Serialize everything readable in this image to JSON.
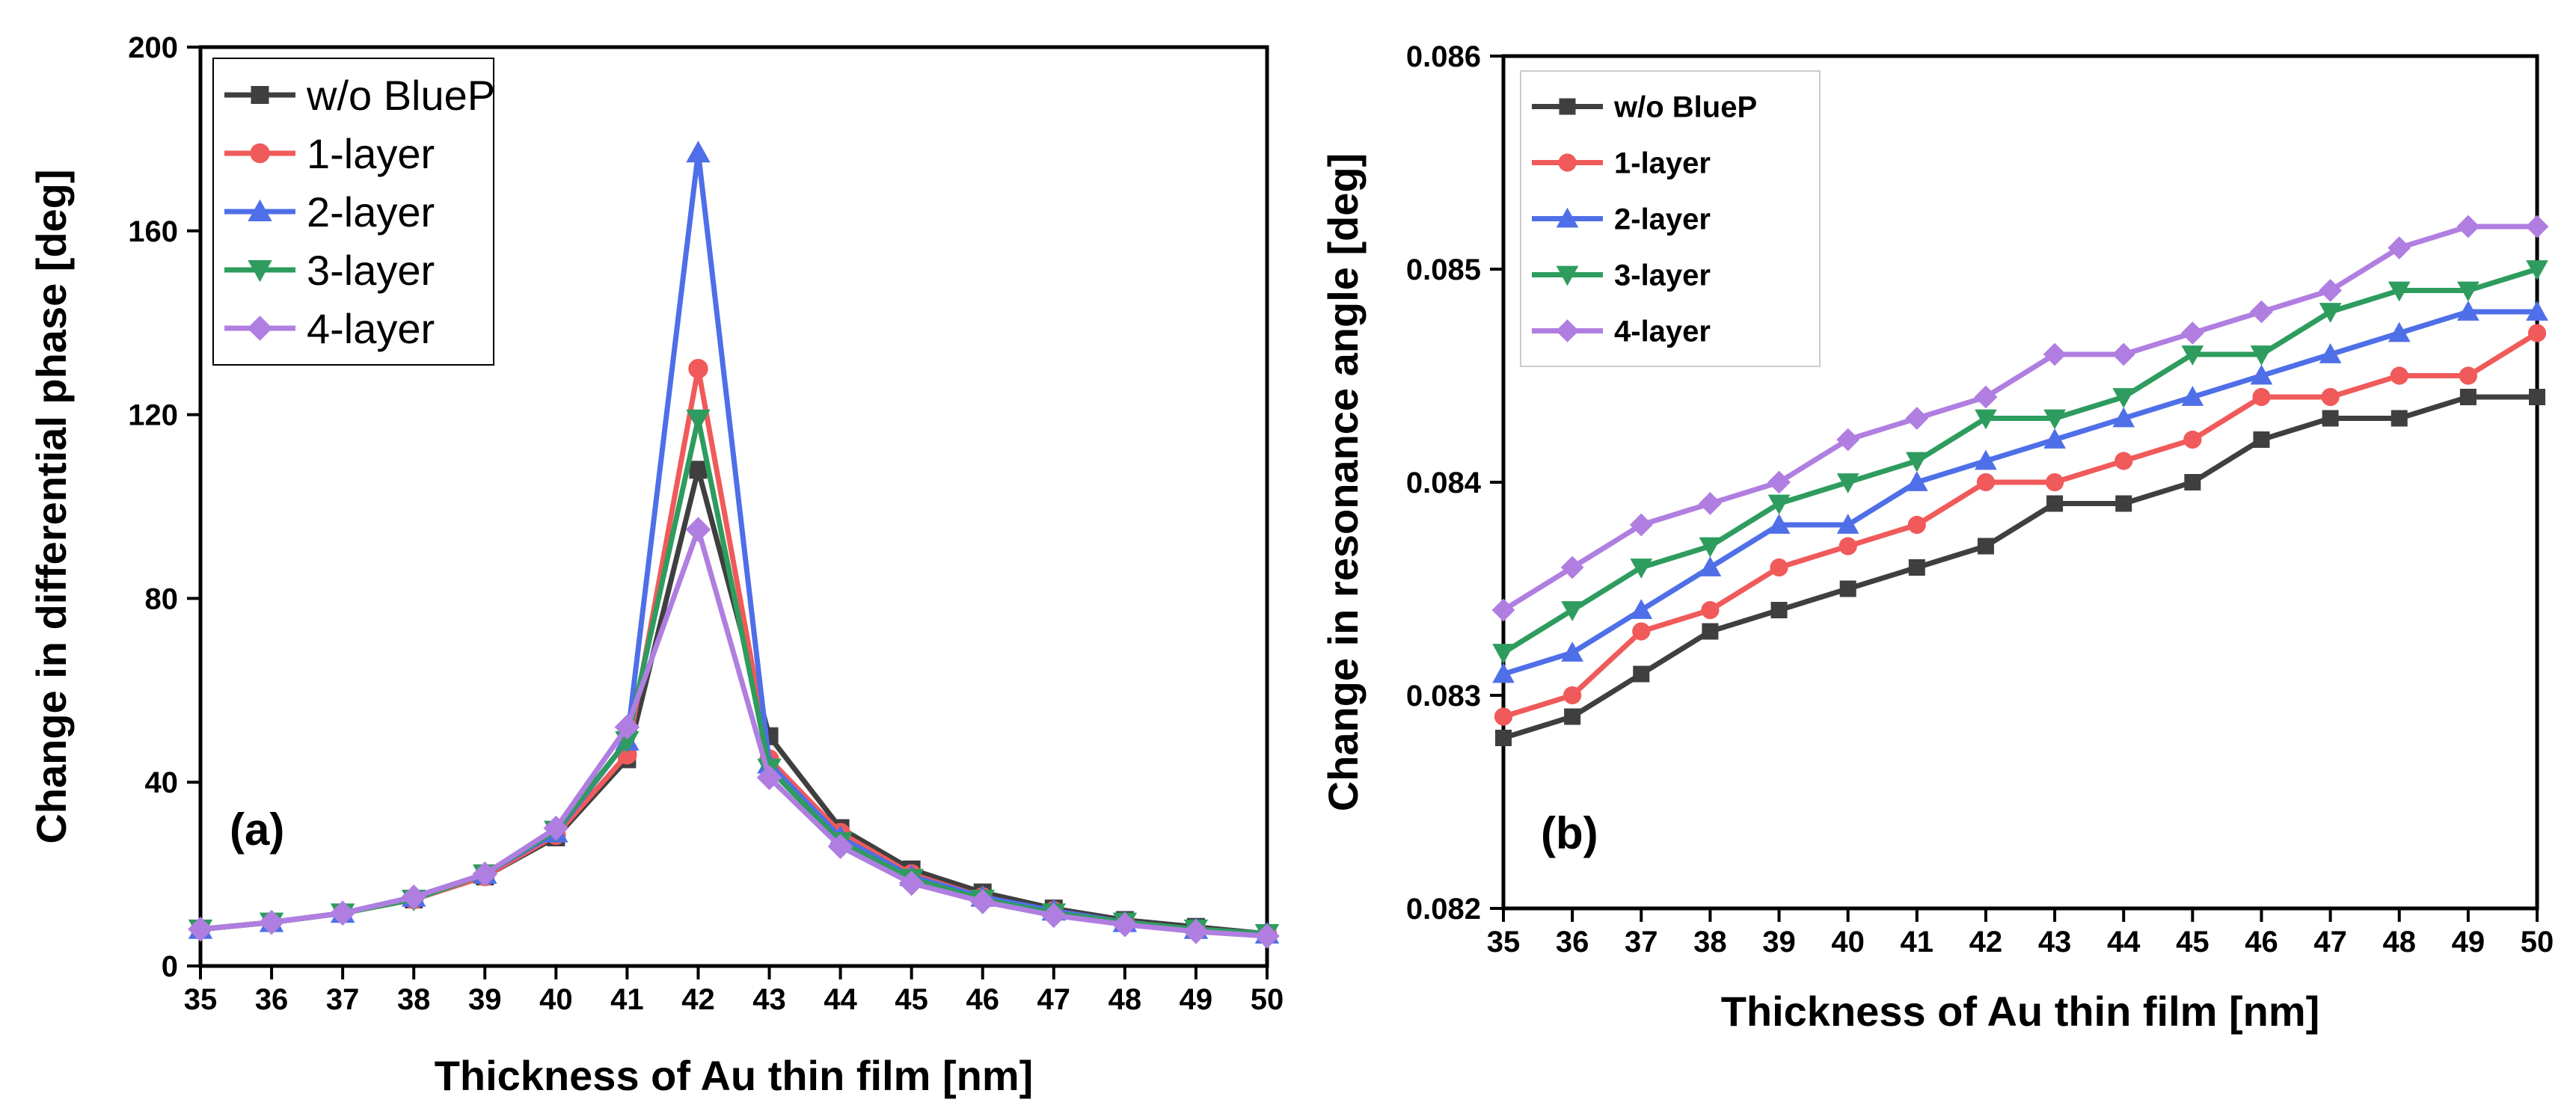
{
  "chart_data": [
    {
      "type": "line",
      "panel_label": "(a)",
      "xlabel": "Thickness of Au thin film [nm]",
      "ylabel": "Change in differential phase [deg]",
      "x": [
        35,
        36,
        37,
        38,
        39,
        40,
        41,
        42,
        43,
        44,
        45,
        46,
        47,
        48,
        49,
        50
      ],
      "xlim": [
        35,
        50
      ],
      "ylim": [
        0,
        200
      ],
      "xticks": [
        "35",
        "36",
        "37",
        "38",
        "39",
        "40",
        "41",
        "42",
        "43",
        "44",
        "45",
        "46",
        "47",
        "48",
        "49",
        "50"
      ],
      "yticks": [
        "0",
        "40",
        "80",
        "120",
        "160",
        "200"
      ],
      "legend_position": "top-left",
      "series": [
        {
          "name": "w/o BlueP",
          "color": "#3f3f3f",
          "marker": "square",
          "values": [
            8,
            9.5,
            11.5,
            14.5,
            19.5,
            28,
            45,
            108,
            50,
            30,
            21,
            16,
            12.5,
            10,
            8.5,
            7
          ]
        },
        {
          "name": "1-layer",
          "color": "#f05a5a",
          "marker": "circle",
          "values": [
            8,
            9.5,
            11.5,
            14.5,
            19.5,
            28.5,
            46,
            130,
            45,
            29,
            20,
            15,
            12,
            9.5,
            8,
            7
          ]
        },
        {
          "name": "2-layer",
          "color": "#4f6fe8",
          "marker": "triangle-up",
          "values": [
            8,
            9.5,
            11.5,
            15,
            20,
            29,
            49,
            177,
            44,
            28,
            19.5,
            15,
            12,
            9.5,
            8,
            7
          ]
        },
        {
          "name": "3-layer",
          "color": "#2e9c5e",
          "marker": "triangle-down",
          "values": [
            8,
            9.5,
            11.5,
            14.5,
            20,
            29.5,
            49,
            119,
            43,
            27,
            19,
            14.5,
            11.5,
            9.5,
            8,
            7
          ]
        },
        {
          "name": "4-layer",
          "color": "#b07ee0",
          "marker": "diamond",
          "values": [
            8,
            9.5,
            11.5,
            15,
            20,
            30,
            52,
            95,
            41,
            26,
            18,
            14,
            11,
            9,
            7.5,
            6.5
          ]
        }
      ]
    },
    {
      "type": "line",
      "panel_label": "(b)",
      "xlabel": "Thickness of Au thin film [nm]",
      "ylabel": "Change in resonance angle [deg]",
      "x": [
        35,
        36,
        37,
        38,
        39,
        40,
        41,
        42,
        43,
        44,
        45,
        46,
        47,
        48,
        49,
        50
      ],
      "xlim": [
        35,
        50
      ],
      "ylim": [
        0.082,
        0.086
      ],
      "xticks": [
        "35",
        "36",
        "37",
        "38",
        "39",
        "40",
        "41",
        "42",
        "43",
        "44",
        "45",
        "46",
        "47",
        "48",
        "49",
        "50"
      ],
      "yticks": [
        "0.082",
        "0.083",
        "0.084",
        "0.085",
        "0.086"
      ],
      "legend_position": "top-left",
      "series": [
        {
          "name": "w/o BlueP",
          "color": "#3f3f3f",
          "marker": "square",
          "values": [
            0.0828,
            0.0829,
            0.0831,
            0.0833,
            0.0834,
            0.0835,
            0.0836,
            0.0837,
            0.0839,
            0.0839,
            0.084,
            0.0842,
            0.0843,
            0.0843,
            0.0844,
            0.0844
          ]
        },
        {
          "name": "1-layer",
          "color": "#f05a5a",
          "marker": "circle",
          "values": [
            0.0829,
            0.083,
            0.0833,
            0.0834,
            0.0836,
            0.0837,
            0.0838,
            0.084,
            0.084,
            0.0841,
            0.0842,
            0.0844,
            0.0844,
            0.0845,
            0.0845,
            0.0847
          ]
        },
        {
          "name": "2-layer",
          "color": "#4f6fe8",
          "marker": "triangle-up",
          "values": [
            0.0831,
            0.0832,
            0.0834,
            0.0836,
            0.0838,
            0.0838,
            0.084,
            0.0841,
            0.0842,
            0.0843,
            0.0844,
            0.0845,
            0.0846,
            0.0847,
            0.0848,
            0.0848
          ]
        },
        {
          "name": "3-layer",
          "color": "#2e9c5e",
          "marker": "triangle-down",
          "values": [
            0.0832,
            0.0834,
            0.0836,
            0.0837,
            0.0839,
            0.084,
            0.0841,
            0.0843,
            0.0843,
            0.0844,
            0.0846,
            0.0846,
            0.0848,
            0.0849,
            0.0849,
            0.085
          ]
        },
        {
          "name": "4-layer",
          "color": "#b07ee0",
          "marker": "diamond",
          "values": [
            0.0834,
            0.0836,
            0.0838,
            0.0839,
            0.084,
            0.0842,
            0.0843,
            0.0844,
            0.0846,
            0.0846,
            0.0847,
            0.0848,
            0.0849,
            0.0851,
            0.0852,
            0.0852
          ]
        }
      ]
    }
  ]
}
